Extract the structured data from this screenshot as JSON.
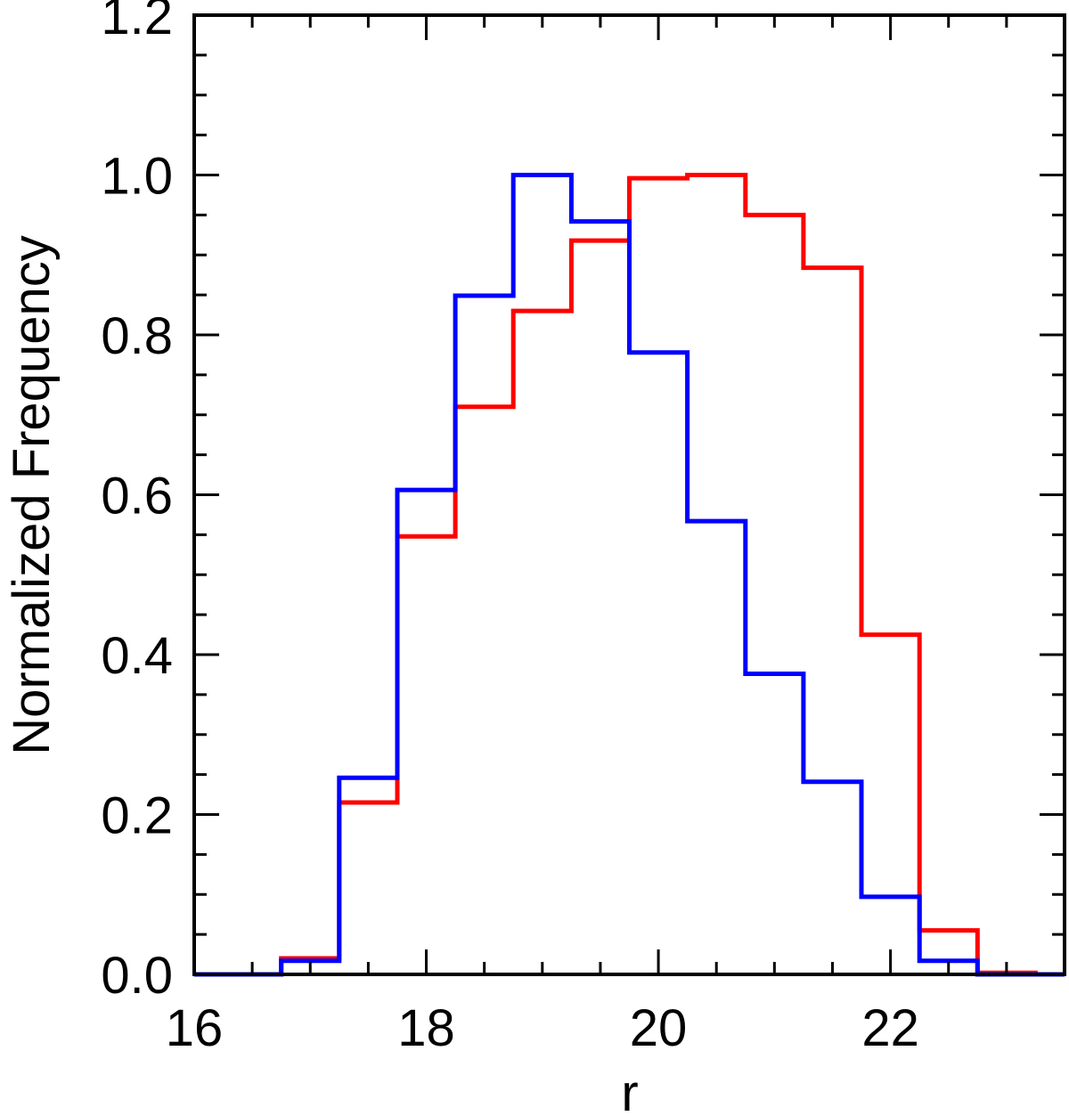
{
  "chart_data": {
    "type": "histogram-step",
    "title": "",
    "xlabel": "r",
    "ylabel": "Normalized Frequency",
    "xlim": [
      16,
      23.5
    ],
    "ylim": [
      0.0,
      1.2
    ],
    "x_ticks": [
      16,
      18,
      20,
      22
    ],
    "x_tick_labels": [
      "16",
      "18",
      "20",
      "22"
    ],
    "x_minor_step": 0.5,
    "y_ticks": [
      0.0,
      0.2,
      0.4,
      0.6,
      0.8,
      1.0,
      1.2
    ],
    "y_tick_labels": [
      "0.0",
      "0.2",
      "0.4",
      "0.6",
      "0.8",
      "1.0",
      "1.2"
    ],
    "y_minor_step": 0.05,
    "grid": false,
    "bin_edges": [
      16.0,
      16.75,
      17.25,
      17.75,
      18.25,
      18.75,
      19.25,
      19.75,
      20.25,
      20.75,
      21.25,
      21.75,
      22.25,
      22.75,
      23.25,
      23.5
    ],
    "series": [
      {
        "color": "#ff0000",
        "values": [
          0.0,
          0.02,
          0.215,
          0.548,
          0.71,
          0.83,
          0.918,
          0.996,
          1.0,
          0.95,
          0.884,
          0.425,
          0.055,
          0.002,
          0.0
        ]
      },
      {
        "color": "#0000ff",
        "values": [
          0.0,
          0.017,
          0.246,
          0.606,
          0.849,
          1.0,
          0.942,
          0.778,
          0.567,
          0.376,
          0.241,
          0.097,
          0.017,
          0.0,
          0.0
        ]
      }
    ]
  }
}
